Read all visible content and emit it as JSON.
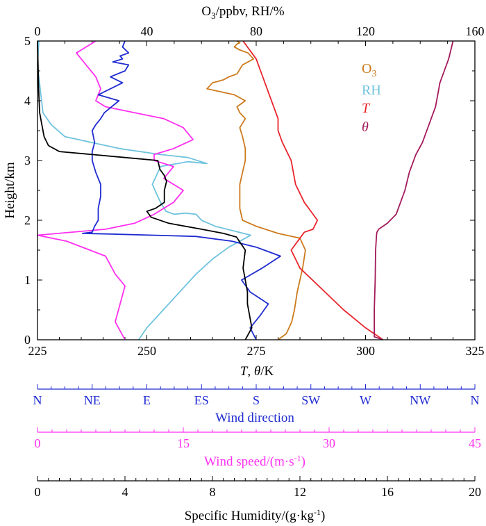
{
  "chart_data": {
    "type": "line",
    "axes": {
      "bottom": {
        "label_prefix": "T",
        "label_mid": ", ",
        "label_theta": "θ",
        "label_suffix": "/K",
        "range": [
          225,
          325
        ],
        "ticks": [
          "225",
          "250",
          "275",
          "300",
          "325"
        ]
      },
      "top": {
        "label_o3": "O",
        "label_sub": "3",
        "label_rest": "/ppbv, RH/%",
        "range": [
          0,
          160
        ],
        "ticks": [
          "0",
          "40",
          "80",
          "120",
          "160"
        ]
      },
      "left": {
        "label": "Height/km",
        "range": [
          0,
          5
        ],
        "ticks": [
          "0",
          "1",
          "2",
          "3",
          "4",
          "5"
        ]
      },
      "wind_direction": {
        "label": "Wind direction",
        "ticks": [
          "N",
          "NE",
          "E",
          "ES",
          "S",
          "SW",
          "W",
          "NW",
          "N"
        ]
      },
      "wind_speed": {
        "label_main": "Wind speed/(m·s",
        "label_sup": "-1",
        "label_close": ")",
        "range": [
          0,
          45
        ],
        "ticks": [
          "0",
          "15",
          "30",
          "45"
        ]
      },
      "specific_humidity": {
        "label_main": "Specific Humidity/(g·kg",
        "label_sup": "-1",
        "label_close": ")",
        "range": [
          0,
          20
        ],
        "ticks": [
          "0",
          "4",
          "8",
          "12",
          "16",
          "20"
        ]
      }
    },
    "legend": {
      "position": "top-right",
      "entries": [
        {
          "label": "O",
          "sub": "3",
          "italic": false,
          "color": "#cc7a1c"
        },
        {
          "label": "RH",
          "sub": "",
          "italic": false,
          "color": "#6ec3dd"
        },
        {
          "label": "T",
          "sub": "",
          "italic": true,
          "color": "#e8242b"
        },
        {
          "label": "θ",
          "sub": "",
          "italic": true,
          "color": "#a3195b"
        }
      ]
    },
    "colors": {
      "o3": "#cc7a1c",
      "rh": "#6ec3dd",
      "temperature": "#e8242b",
      "theta": "#a3195b",
      "wind_direction": "#1f2bd1",
      "wind_speed": "#ff2ff0",
      "specific_humidity": "#000000"
    },
    "series": {
      "temperature": {
        "axis": "bottom",
        "x": [
          304,
          300,
          295,
          290,
          285,
          283,
          286,
          288,
          289,
          288,
          286,
          284,
          283,
          281,
          280,
          280,
          279,
          278,
          277,
          276,
          275,
          274,
          273,
          272.5,
          272
        ],
        "y": [
          0,
          0.2,
          0.5,
          0.85,
          1.2,
          1.5,
          1.8,
          1.85,
          2.0,
          2.1,
          2.3,
          2.6,
          3.0,
          3.3,
          3.5,
          3.7,
          3.9,
          4.1,
          4.3,
          4.5,
          4.7,
          4.8,
          4.9,
          4.95,
          5.0
        ]
      },
      "theta": {
        "axis": "bottom",
        "x": [
          304,
          302,
          302,
          302.2,
          302.3,
          302.5,
          302.6,
          303,
          305,
          307,
          308,
          309,
          310,
          311,
          311.5,
          313,
          314,
          315,
          316,
          316.5,
          317,
          318,
          319,
          319.5,
          320
        ],
        "y": [
          0,
          0.05,
          0.5,
          1.0,
          1.5,
          1.75,
          1.8,
          1.85,
          1.95,
          2.1,
          2.3,
          2.5,
          2.8,
          3.0,
          3.1,
          3.3,
          3.5,
          3.7,
          3.9,
          4.1,
          4.3,
          4.5,
          4.7,
          4.85,
          5.0
        ]
      },
      "o3": {
        "axis": "top",
        "x": [
          88,
          91,
          93,
          94,
          95,
          96,
          97,
          98,
          96,
          88,
          80,
          75,
          74,
          74,
          74,
          75,
          76,
          76,
          75,
          74,
          76,
          74,
          73,
          76,
          72,
          62,
          64,
          68,
          70,
          73,
          75,
          79,
          77,
          74,
          72,
          73,
          74,
          73
        ],
        "y": [
          0,
          0.1,
          0.3,
          0.5,
          0.8,
          1.0,
          1.2,
          1.5,
          1.7,
          1.78,
          1.9,
          2.0,
          2.2,
          2.4,
          2.6,
          2.8,
          3.0,
          3.2,
          3.4,
          3.55,
          3.7,
          3.8,
          3.9,
          4.0,
          4.1,
          4.2,
          4.3,
          4.35,
          4.4,
          4.45,
          4.6,
          4.7,
          4.8,
          4.85,
          4.9,
          4.95,
          4.97,
          5.0
        ]
      },
      "rh": {
        "axis": "top",
        "x": [
          37,
          40,
          46,
          52,
          58,
          64,
          70,
          76,
          78,
          72,
          65,
          60,
          58,
          54,
          50,
          47,
          45,
          42,
          45,
          55,
          62,
          55,
          45,
          30,
          20,
          10,
          5,
          2,
          1,
          0,
          0.5
        ],
        "y": [
          0,
          0.2,
          0.5,
          0.8,
          1.1,
          1.35,
          1.55,
          1.7,
          1.75,
          1.82,
          1.9,
          2.0,
          2.1,
          2.12,
          2.1,
          2.15,
          2.3,
          2.6,
          2.9,
          2.98,
          2.95,
          3.05,
          3.1,
          3.2,
          3.3,
          3.4,
          3.6,
          3.8,
          4.2,
          4.6,
          5.0
        ]
      },
      "specific_humidity": {
        "axis": "specific_humidity",
        "x": [
          9.5,
          9.8,
          9.7,
          9.6,
          9.6,
          9.5,
          9.4,
          9.5,
          9.1,
          8.5,
          7.5,
          6.0,
          5.2,
          5.0,
          5.4,
          5.8,
          5.8,
          5.9,
          5.8,
          5.6,
          5.5,
          4.0,
          2.5,
          1.0,
          0.5,
          0.3,
          0.2,
          0.1,
          0.05,
          0.0
        ],
        "y": [
          0,
          0.2,
          0.4,
          0.6,
          0.8,
          1.0,
          1.2,
          1.5,
          1.72,
          1.78,
          1.85,
          1.95,
          2.05,
          2.15,
          2.2,
          2.3,
          2.5,
          2.65,
          2.75,
          2.85,
          3.0,
          3.05,
          3.1,
          3.15,
          3.25,
          3.4,
          3.6,
          3.8,
          4.2,
          5.0
        ]
      },
      "wind_direction": {
        "axis": "wind_direction",
        "x": [
          180,
          175,
          183,
          190,
          175,
          168,
          185,
          200,
          180,
          160,
          130,
          60,
          37,
          45,
          47,
          50,
          50,
          52,
          52,
          48,
          45,
          45,
          47,
          45,
          48,
          52,
          55,
          67,
          50,
          70,
          60,
          72,
          75,
          62,
          70,
          68,
          75,
          70,
          72
        ],
        "y": [
          0,
          0.2,
          0.4,
          0.6,
          0.8,
          1.0,
          1.2,
          1.4,
          1.55,
          1.65,
          1.73,
          1.77,
          1.78,
          1.8,
          1.9,
          2.0,
          2.2,
          2.4,
          2.6,
          2.8,
          3.0,
          3.15,
          3.3,
          3.5,
          3.6,
          3.7,
          3.8,
          4.0,
          4.1,
          4.3,
          4.4,
          4.5,
          4.6,
          4.65,
          4.7,
          4.75,
          4.8,
          4.9,
          5.0
        ]
      },
      "wind_speed": {
        "axis": "wind_speed",
        "x": [
          9,
          8,
          8.5,
          9,
          8,
          7,
          3,
          0,
          7,
          10,
          12,
          14,
          15,
          13,
          14,
          12,
          12,
          14,
          16,
          15,
          13,
          10,
          7,
          6,
          6.5,
          6,
          5,
          4,
          5,
          6
        ],
        "y": [
          0,
          0.3,
          0.6,
          0.9,
          1.1,
          1.4,
          1.65,
          1.75,
          1.85,
          1.95,
          2.1,
          2.3,
          2.5,
          2.7,
          2.9,
          3.0,
          3.1,
          3.2,
          3.35,
          3.55,
          3.7,
          3.8,
          3.9,
          4.0,
          4.2,
          4.4,
          4.6,
          4.8,
          4.9,
          5.0
        ]
      }
    }
  }
}
